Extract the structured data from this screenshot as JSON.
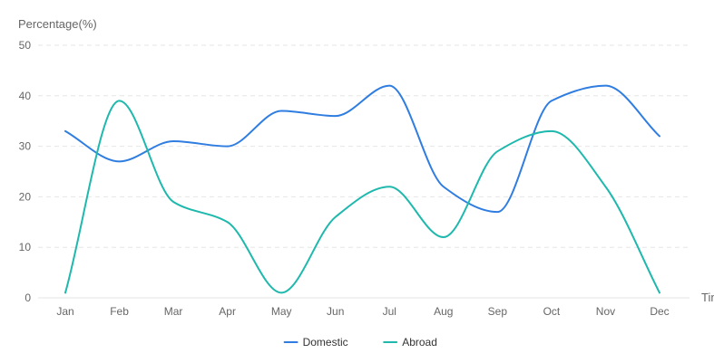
{
  "chart_data": {
    "type": "line",
    "smooth": true,
    "title": "",
    "ylabel": "Percentage(%)",
    "xlabel": "Time",
    "ylim": [
      0,
      50
    ],
    "yticks": [
      0,
      10,
      20,
      30,
      40,
      50
    ],
    "grid": true,
    "legend_position": "bottom-center",
    "categories": [
      "Jan",
      "Feb",
      "Mar",
      "Apr",
      "May",
      "Jun",
      "Jul",
      "Aug",
      "Sep",
      "Oct",
      "Nov",
      "Dec"
    ],
    "series": [
      {
        "name": "Domestic",
        "color": "#2f7de1",
        "values": [
          33,
          27,
          31,
          30,
          37,
          36,
          42,
          22,
          17,
          39,
          42,
          32
        ]
      },
      {
        "name": "Abroad",
        "color": "#1fb8ad",
        "values": [
          1,
          39,
          19,
          15,
          1,
          16,
          22,
          12,
          29,
          33,
          22,
          1
        ]
      }
    ]
  }
}
